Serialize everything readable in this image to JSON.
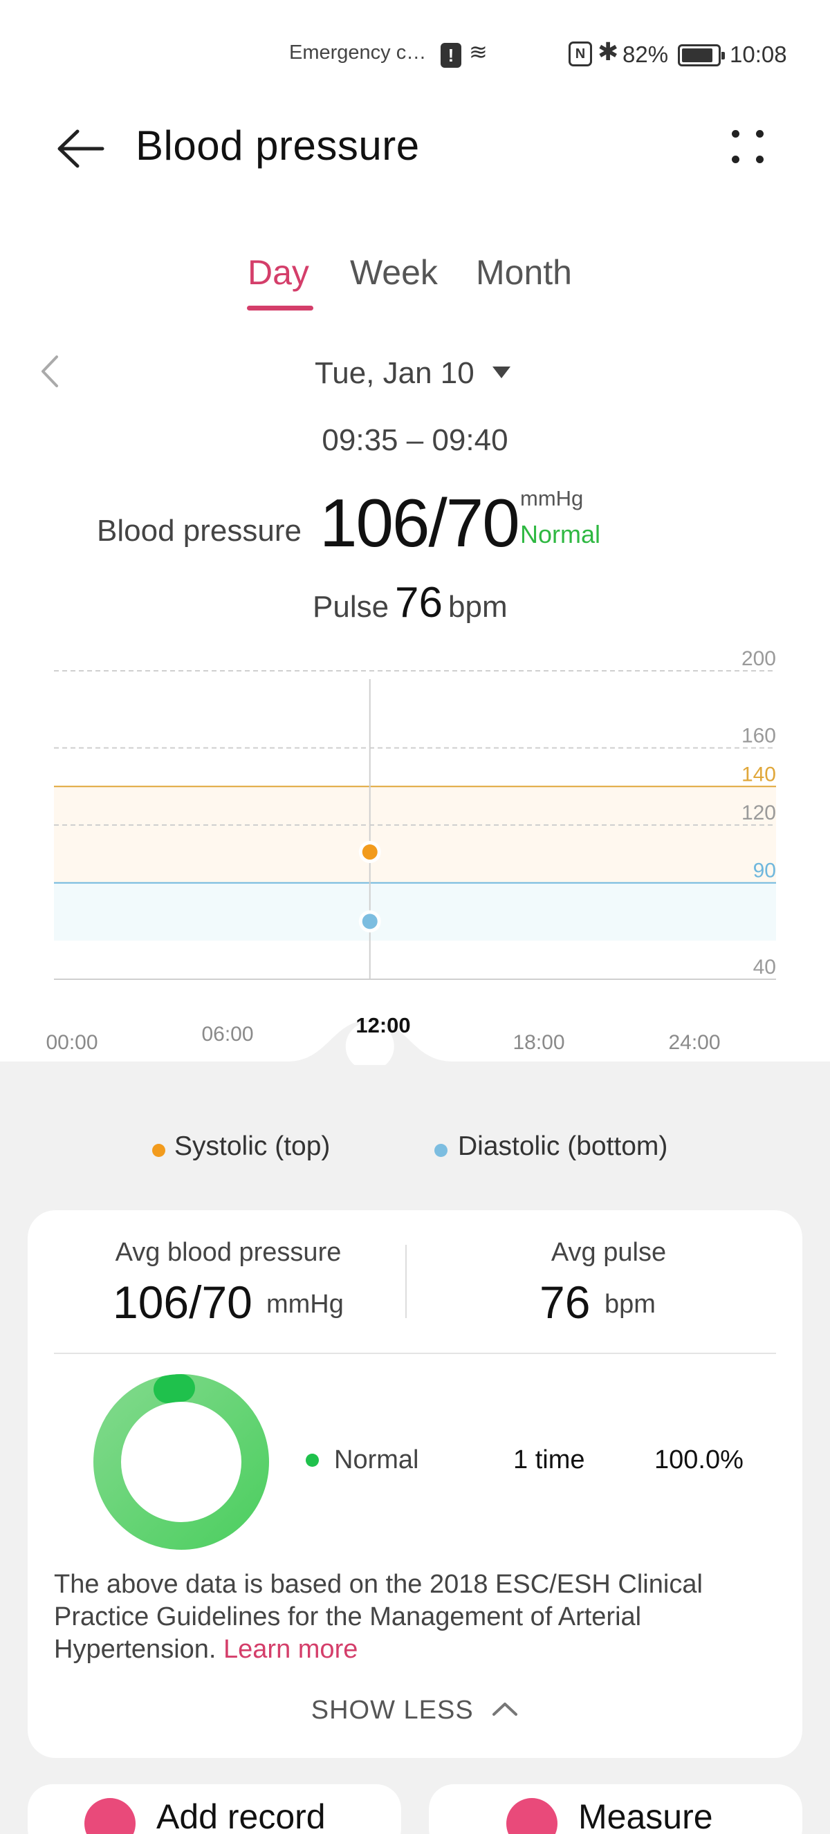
{
  "status_bar": {
    "emergency_text": "Emergency c…",
    "battery_pct": "82%",
    "time": "10:08",
    "alert_glyph": "!",
    "nfc_glyph": "N",
    "bluetooth_glyph": "✱"
  },
  "header": {
    "title": "Blood pressure"
  },
  "tabs": [
    {
      "label": "Day",
      "active": true
    },
    {
      "label": "Week",
      "active": false
    },
    {
      "label": "Month",
      "active": false
    }
  ],
  "date": {
    "selected": "Tue, Jan 10"
  },
  "reading": {
    "time_range": "09:35 – 09:40",
    "bp_label": "Blood pressure",
    "bp_value": "106/70",
    "bp_unit": "mmHg",
    "bp_status": "Normal",
    "pulse_label": "Pulse",
    "pulse_value": "76",
    "pulse_unit": "bpm"
  },
  "chart_data": {
    "type": "scatter",
    "ylim": [
      40,
      200
    ],
    "y_ticks": [
      200,
      160,
      140,
      120,
      90,
      40
    ],
    "reference_lines": [
      {
        "value": 140,
        "color": "#e0a73a"
      },
      {
        "value": 90,
        "color": "#6fb7dd"
      }
    ],
    "x_ticks": [
      "00:00",
      "06:00",
      "12:00",
      "18:00",
      "24:00"
    ],
    "x_range_hours": [
      0,
      24
    ],
    "selected_x_label": "12:00",
    "series": [
      {
        "name": "Systolic (top)",
        "color": "#f29b1d",
        "points": [
          {
            "x": 10.5,
            "y": 106
          }
        ]
      },
      {
        "name": "Diastolic (bottom)",
        "color": "#7cbde0",
        "points": [
          {
            "x": 10.5,
            "y": 70
          }
        ]
      }
    ]
  },
  "legend": {
    "systolic": "Systolic (top)",
    "diastolic": "Diastolic (bottom)"
  },
  "summary": {
    "avg_bp_label": "Avg blood pressure",
    "avg_bp_value": "106/70",
    "avg_bp_unit": "mmHg",
    "avg_pulse_label": "Avg pulse",
    "avg_pulse_value": "76",
    "avg_pulse_unit": "bpm",
    "distribution": {
      "label": "Normal",
      "count": "1 time",
      "percent": "100.0%",
      "fraction": 1.0
    },
    "guideline_text": "The above data is based on the 2018 ESC/ESH Clinical Practice Guidelines for the Management of Arterial Hypertension.",
    "learn_more": "Learn more",
    "show_less": "SHOW LESS"
  },
  "actions": {
    "add_record": "Add record",
    "measure": "Measure"
  },
  "colors": {
    "accent": "#d43e6a",
    "normal": "#2fb842",
    "systolic": "#f29b1d",
    "diastolic": "#7cbde0"
  }
}
